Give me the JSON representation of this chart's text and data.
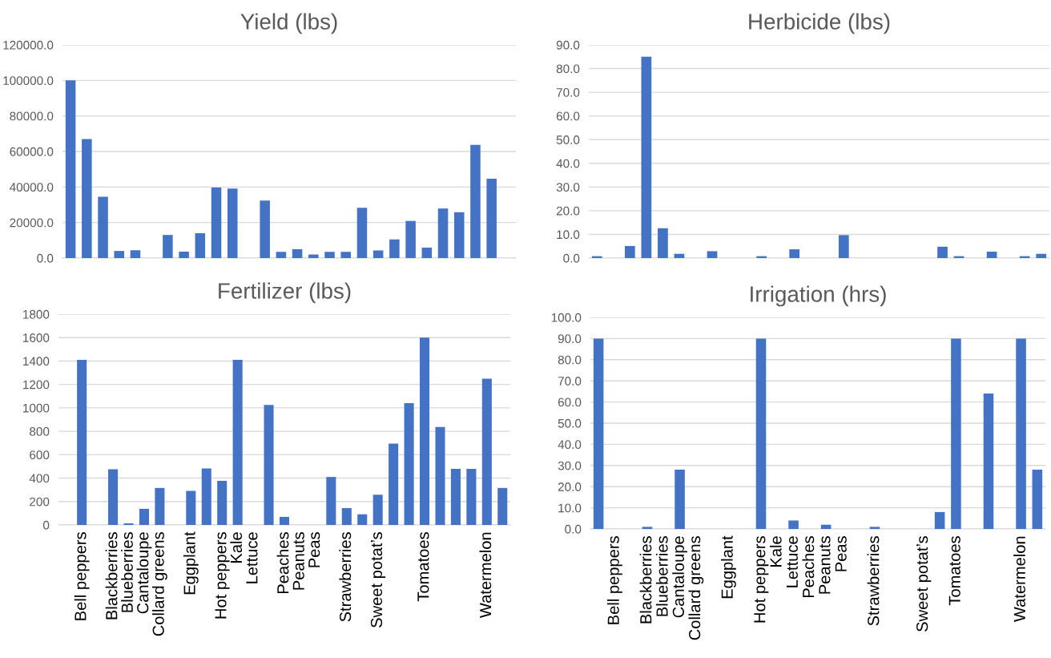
{
  "chart_data": [
    {
      "type": "bar",
      "title": "Yield (lbs)",
      "color": "#4472c4",
      "tick_labels": "y",
      "grid": "y",
      "categories": [
        null,
        null,
        null,
        null,
        null,
        null,
        null,
        null,
        null,
        null,
        null,
        null,
        null,
        null,
        null,
        null,
        null,
        null,
        null,
        null,
        null,
        null,
        null,
        null,
        null,
        null,
        null,
        null
      ],
      "values": [
        100000,
        67000,
        34500,
        4000,
        4400,
        null,
        13000,
        3600,
        14000,
        39700,
        39100,
        null,
        32400,
        3500,
        5000,
        2000,
        3500,
        3500,
        28300,
        4300,
        10500,
        20900,
        5900,
        27900,
        25800,
        63700,
        44700,
        null
      ],
      "ylim": [
        0,
        120000
      ],
      "yticks": [
        {
          "value": 0,
          "label": "0.0"
        },
        {
          "value": 20000,
          "label": "20000.0"
        },
        {
          "value": 40000,
          "label": "40000.0"
        },
        {
          "value": 60000,
          "label": "60000.0"
        },
        {
          "value": 80000,
          "label": "80000.0"
        },
        {
          "value": 100000,
          "label": "100000.0"
        },
        {
          "value": 120000,
          "label": "120000.0"
        }
      ]
    },
    {
      "type": "bar",
      "title": "Herbicide (lbs)",
      "color": "#4472c4",
      "tick_labels": "y",
      "grid": "y",
      "categories": [
        null,
        null,
        null,
        null,
        null,
        null,
        null,
        null,
        null,
        null,
        null,
        null,
        null,
        null,
        null,
        null,
        null,
        null,
        null,
        null,
        null,
        null,
        null,
        null,
        null,
        null,
        null,
        null
      ],
      "values": [
        0.8,
        null,
        5.1,
        85,
        12.6,
        1.8,
        null,
        2.9,
        null,
        null,
        0.8,
        null,
        3.7,
        null,
        null,
        9.7,
        null,
        null,
        null,
        null,
        null,
        4.8,
        0.8,
        null,
        2.7,
        null,
        0.8,
        1.8
      ],
      "ylim": [
        0,
        90
      ],
      "yticks": [
        {
          "value": 0,
          "label": "0.0"
        },
        {
          "value": 10,
          "label": "10.0"
        },
        {
          "value": 20,
          "label": "20.0"
        },
        {
          "value": 30,
          "label": "30.0"
        },
        {
          "value": 40,
          "label": "40.0"
        },
        {
          "value": 50,
          "label": "50.0"
        },
        {
          "value": 60,
          "label": "60.0"
        },
        {
          "value": 70,
          "label": "70.0"
        },
        {
          "value": 80,
          "label": "80.0"
        },
        {
          "value": 90,
          "label": "90.0"
        }
      ]
    },
    {
      "type": "bar",
      "title": "Fertilizer (lbs)",
      "color": "#4472c4",
      "grid": "y",
      "categories": [
        null,
        "Bell peppers",
        null,
        "Blackberries",
        "Blueberries",
        "Cantaloupe",
        "Collard greens",
        null,
        "Eggplant",
        null,
        "Hot peppers",
        "Kale",
        "Lettuce",
        null,
        "Peaches",
        "Peanuts",
        "Peas",
        null,
        "Strawberries",
        null,
        "Sweet potat’s",
        null,
        null,
        "Tomatoes",
        null,
        null,
        null,
        "Watermelon",
        null
      ],
      "values": [
        null,
        1410,
        null,
        476,
        14,
        138,
        316,
        null,
        291,
        482,
        377,
        1410,
        null,
        1025,
        69,
        null,
        null,
        410,
        144,
        91,
        258,
        695,
        1041,
        1600,
        836,
        479,
        479,
        1249,
        316
      ],
      "ylim": [
        0,
        1800
      ],
      "yticks": [
        0,
        200,
        400,
        600,
        800,
        1000,
        1200,
        1400,
        1600,
        1800
      ]
    },
    {
      "type": "bar",
      "title": "Irrigation (hrs)",
      "color": "#4472c4",
      "grid": "y",
      "categories": [
        null,
        "Bell peppers",
        null,
        "Blackberries",
        "Blueberries",
        "Cantaloupe",
        "Collard greens",
        null,
        "Eggplant",
        null,
        "Hot peppers",
        "Kale",
        "Lettuce",
        "Peaches",
        "Peanuts",
        "Peas",
        null,
        "Strawberries",
        null,
        null,
        "Sweet potat’s",
        null,
        "Tomatoes",
        null,
        null,
        null,
        "Watermelon",
        null
      ],
      "values": [
        90,
        null,
        null,
        1,
        null,
        28,
        null,
        null,
        null,
        null,
        90,
        null,
        4,
        null,
        2,
        null,
        null,
        1,
        null,
        null,
        null,
        8,
        90,
        null,
        64,
        null,
        90,
        28
      ],
      "ylim": [
        0,
        100
      ],
      "yticks": [
        {
          "value": 0,
          "label": "0.0"
        },
        {
          "value": 10,
          "label": "10.0"
        },
        {
          "value": 20,
          "label": "20.0"
        },
        {
          "value": 30,
          "label": "30.0"
        },
        {
          "value": 40,
          "label": "40.0"
        },
        {
          "value": 50,
          "label": "50.0"
        },
        {
          "value": 60,
          "label": "60.0"
        },
        {
          "value": 70,
          "label": "70.0"
        },
        {
          "value": 80,
          "label": "80.0"
        },
        {
          "value": 90,
          "label": "90.0"
        },
        {
          "value": 100,
          "label": "100.0"
        }
      ]
    }
  ]
}
